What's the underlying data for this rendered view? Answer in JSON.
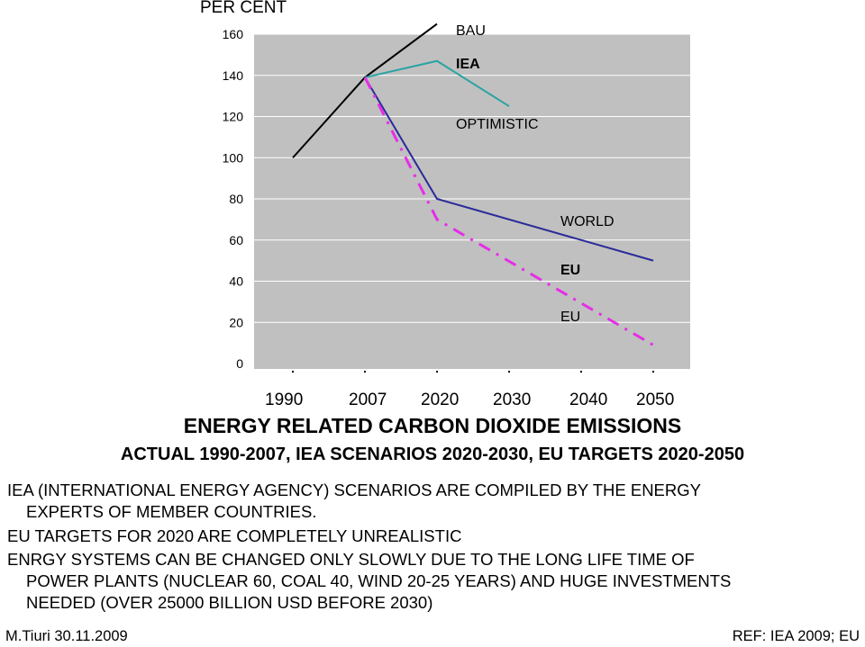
{
  "chart_data": {
    "type": "line",
    "y_axis_title": "PER CENT",
    "ylim": [
      0,
      160
    ],
    "y_ticks": [
      0,
      20,
      40,
      60,
      80,
      100,
      120,
      140,
      160
    ],
    "x_tick_labels": [
      "1990",
      "2007",
      "2020",
      "2030",
      "2040",
      "2050"
    ],
    "grid": true,
    "series": [
      {
        "name": "BAU",
        "color": "#000000",
        "style": "solid",
        "points": [
          [
            1990,
            100
          ],
          [
            2007,
            139
          ],
          [
            2020,
            165
          ]
        ]
      },
      {
        "name": "IEA",
        "color": "#2aa3a3",
        "style": "solid",
        "points": [
          [
            2007,
            139
          ],
          [
            2020,
            147
          ],
          [
            2030,
            125
          ]
        ]
      },
      {
        "name": "WORLD",
        "color": "#2a2a9a",
        "style": "solid",
        "points": [
          [
            2007,
            139
          ],
          [
            2020,
            80
          ],
          [
            2050,
            50
          ]
        ]
      },
      {
        "name": "EU",
        "color": "#e62ee6",
        "style": "dashdot",
        "points": [
          [
            2007,
            139
          ],
          [
            2020,
            70
          ],
          [
            2050,
            9
          ]
        ]
      }
    ],
    "annotations": [
      "BAU",
      "IEA",
      "OPTIMISTIC",
      "WORLD",
      "EU",
      "EU"
    ]
  },
  "title": "ENERGY RELATED CARBON DIOXIDE EMISSIONS",
  "subtitle": "ACTUAL 1990-2007, IEA SCENARIOS 2020-2030, EU TARGETS 2020-2050",
  "paragraphs": {
    "p1_line1": "IEA  (INTERNATIONAL ENERGY AGENCY) SCENARIOS ARE COMPILED BY THE ENERGY",
    "p1_line2": "EXPERTS OF MEMBER COUNTRIES.",
    "p2_line1": "EU TARGETS FOR 2020 ARE COMPLETELY  UNREALISTIC",
    "p3_line1": "ENRGY SYSTEMS CAN BE CHANGED ONLY SLOWLY DUE TO THE LONG LIFE TIME OF",
    "p3_line2": "POWER PLANTS (NUCLEAR 60, COAL 40, WIND 20-25 YEARS) AND HUGE INVESTMENTS",
    "p3_line3": "NEEDED (OVER 25000 BILLION USD BEFORE 2030)"
  },
  "footer": {
    "author": "M.Tiuri 30.11.2009",
    "reference": "REF: IEA 2009; EU"
  }
}
